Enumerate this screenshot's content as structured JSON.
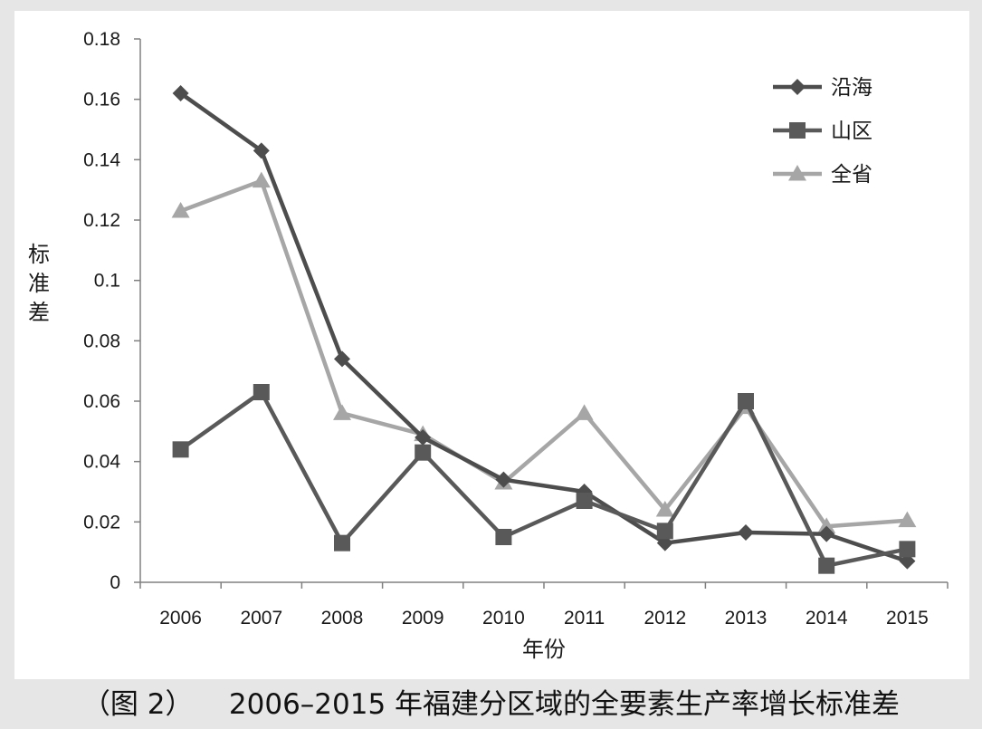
{
  "chart_data": {
    "type": "line",
    "caption": "（图 2）    2006–2015 年福建分区域的全要素生产率增长标准差",
    "xlabel": "年份",
    "ylabel": "标准差",
    "categories": [
      "2006",
      "2007",
      "2008",
      "2009",
      "2010",
      "2011",
      "2012",
      "2013",
      "2014",
      "2015"
    ],
    "ylim": [
      0,
      0.18
    ],
    "yticks": [
      0,
      0.02,
      0.04,
      0.06,
      0.08,
      0.1,
      0.12,
      0.14,
      0.16,
      0.18
    ],
    "ytick_labels": [
      "0",
      "0.02",
      "0.04",
      "0.06",
      "0.08",
      "0.1",
      "0.12",
      "0.14",
      "0.16",
      "0.18"
    ],
    "grid": false,
    "legend_position": "top-right",
    "series": [
      {
        "name": "沿海",
        "marker": "diamond",
        "color": "#4d4d4d",
        "values": [
          0.162,
          0.143,
          0.074,
          0.048,
          0.034,
          0.03,
          0.013,
          0.0165,
          0.016,
          0.007
        ]
      },
      {
        "name": "山区",
        "marker": "square",
        "color": "#595959",
        "values": [
          0.044,
          0.063,
          0.013,
          0.043,
          0.015,
          0.027,
          0.017,
          0.06,
          0.0055,
          0.011
        ]
      },
      {
        "name": "全省",
        "marker": "triangle",
        "color": "#a6a6a6",
        "values": [
          0.123,
          0.133,
          0.056,
          0.049,
          0.033,
          0.056,
          0.024,
          0.058,
          0.0185,
          0.0205
        ]
      }
    ]
  }
}
